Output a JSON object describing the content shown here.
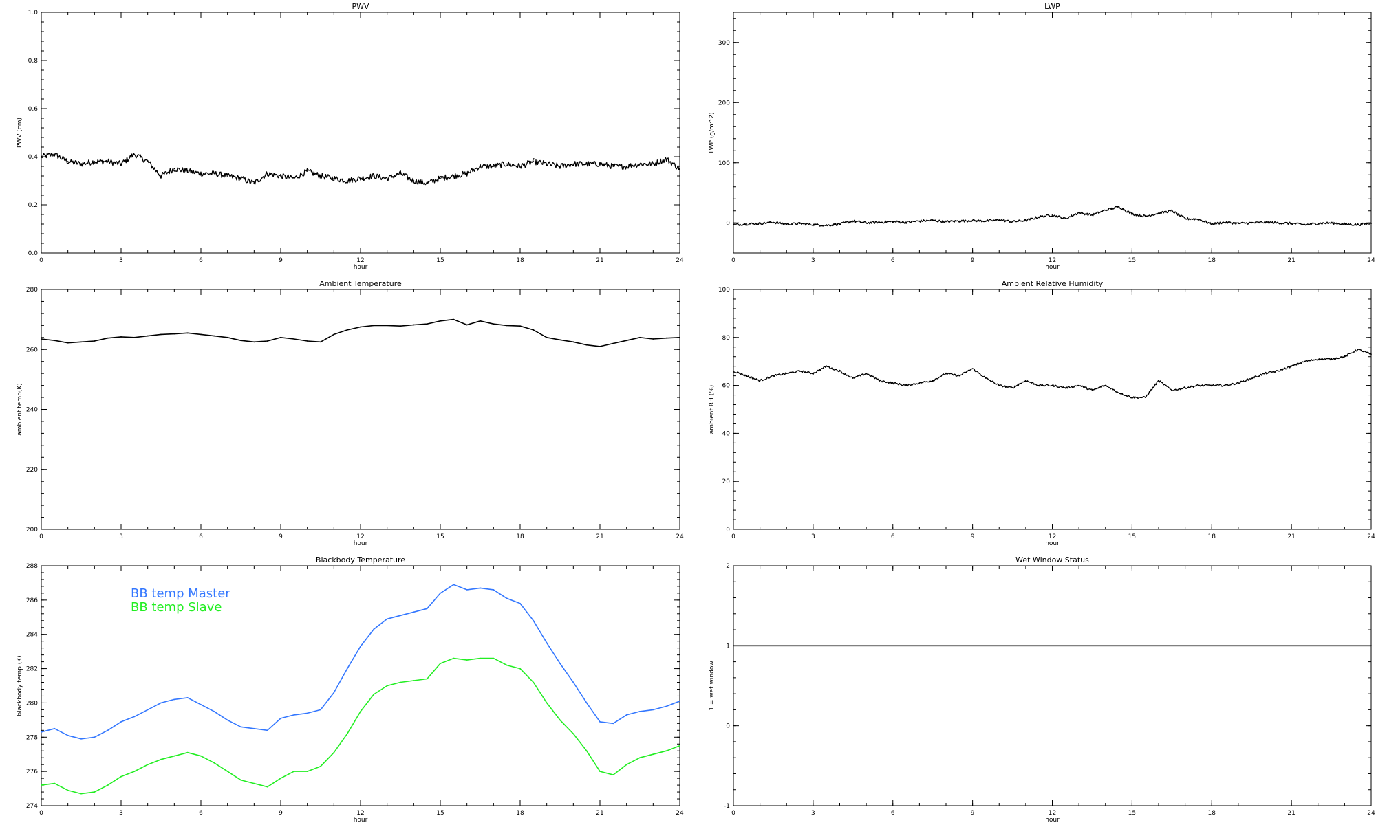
{
  "chart_data": [
    {
      "id": "pwv",
      "type": "line",
      "title": "PWV",
      "xlabel": "hour",
      "ylabel": "PWV (cm)",
      "xlim": [
        0,
        24
      ],
      "ylim": [
        0,
        1
      ],
      "xticks": [
        "0",
        "3",
        "6",
        "9",
        "12",
        "15",
        "18",
        "21",
        "24"
      ],
      "yticks": [
        "0.0",
        "0.2",
        "0.4",
        "0.6",
        "0.8",
        "1.0"
      ],
      "series": [
        {
          "color": "#000000",
          "noise": 0.012,
          "x": [
            0,
            0.5,
            1,
            1.5,
            2,
            2.5,
            3,
            3.5,
            4,
            4.5,
            5,
            5.5,
            6,
            6.5,
            7,
            7.5,
            8,
            8.5,
            9,
            9.5,
            10,
            10.5,
            11,
            11.5,
            12,
            12.5,
            13,
            13.5,
            14,
            14.5,
            15,
            15.5,
            16,
            16.5,
            17,
            17.5,
            18,
            18.5,
            19,
            19.5,
            20,
            20.5,
            21,
            21.5,
            22,
            22.5,
            23,
            23.5,
            24
          ],
          "y": [
            0.4,
            0.41,
            0.38,
            0.37,
            0.38,
            0.38,
            0.37,
            0.41,
            0.38,
            0.32,
            0.35,
            0.34,
            0.33,
            0.33,
            0.32,
            0.31,
            0.29,
            0.33,
            0.32,
            0.31,
            0.34,
            0.32,
            0.31,
            0.3,
            0.31,
            0.32,
            0.31,
            0.33,
            0.3,
            0.29,
            0.31,
            0.32,
            0.33,
            0.36,
            0.36,
            0.37,
            0.36,
            0.38,
            0.37,
            0.36,
            0.37,
            0.37,
            0.37,
            0.36,
            0.36,
            0.37,
            0.37,
            0.39,
            0.35
          ]
        }
      ]
    },
    {
      "id": "lwp",
      "type": "line",
      "title": "LWP",
      "xlabel": "hour",
      "ylabel": "LWP (g/m^2)",
      "xlim": [
        0,
        24
      ],
      "ylim": [
        -50,
        350
      ],
      "xticks": [
        "0",
        "3",
        "6",
        "9",
        "12",
        "15",
        "18",
        "21",
        "24"
      ],
      "yticks": [
        "0",
        "100",
        "200",
        "300"
      ],
      "series": [
        {
          "color": "#000000",
          "noise": 2,
          "x": [
            0,
            0.5,
            1,
            1.5,
            2,
            2.5,
            3,
            3.5,
            4,
            4.5,
            5,
            5.5,
            6,
            6.5,
            7,
            7.5,
            8,
            8.5,
            9,
            9.5,
            10,
            10.5,
            11,
            11.5,
            12,
            12.5,
            13,
            13.5,
            14,
            14.5,
            15,
            15.5,
            16,
            16.5,
            17,
            17.5,
            18,
            18.5,
            19,
            19.5,
            20,
            20.5,
            21,
            21.5,
            22,
            22.5,
            23,
            23.5,
            24
          ],
          "y": [
            -3,
            -2,
            -1,
            1,
            -2,
            -1,
            -3,
            -4,
            -2,
            3,
            0,
            1,
            2,
            1,
            3,
            4,
            2,
            3,
            4,
            3,
            5,
            2,
            4,
            10,
            13,
            7,
            17,
            13,
            21,
            27,
            15,
            11,
            16,
            20,
            7,
            6,
            -2,
            1,
            -1,
            0,
            1,
            0,
            -1,
            -3,
            -1,
            0,
            -2,
            -3,
            -1
          ]
        }
      ]
    },
    {
      "id": "ambient_temp",
      "type": "line",
      "title": "Ambient Temperature",
      "xlabel": "hour",
      "ylabel": "ambient temp(K)",
      "xlim": [
        0,
        24
      ],
      "ylim": [
        200,
        280
      ],
      "xticks": [
        "0",
        "3",
        "6",
        "9",
        "12",
        "15",
        "18",
        "21",
        "24"
      ],
      "yticks": [
        "200",
        "220",
        "240",
        "260",
        "280"
      ],
      "series": [
        {
          "color": "#000000",
          "noise": 0,
          "x": [
            0,
            0.5,
            1,
            1.5,
            2,
            2.5,
            3,
            3.5,
            4,
            4.5,
            5,
            5.5,
            6,
            6.5,
            7,
            7.5,
            8,
            8.5,
            9,
            9.5,
            10,
            10.5,
            11,
            11.5,
            12,
            12.5,
            13,
            13.5,
            14,
            14.5,
            15,
            15.5,
            16,
            16.5,
            17,
            17.5,
            18,
            18.5,
            19,
            19.5,
            20,
            20.5,
            21,
            21.5,
            22,
            22.5,
            23,
            23.5,
            24
          ],
          "y": [
            263.5,
            263,
            262.2,
            262.5,
            262.8,
            263.8,
            264.2,
            264,
            264.5,
            265,
            265.2,
            265.5,
            265,
            264.5,
            264,
            263,
            262.5,
            262.8,
            264,
            263.5,
            262.8,
            262.5,
            265,
            266.5,
            267.5,
            268,
            268,
            267.8,
            268.2,
            268.5,
            269.5,
            270,
            268.2,
            269.5,
            268.5,
            268,
            267.8,
            266.5,
            264,
            263.2,
            262.5,
            261.5,
            261,
            262,
            263,
            264,
            263.5,
            263.8,
            264
          ]
        }
      ]
    },
    {
      "id": "ambient_rh",
      "type": "line",
      "title": "Ambient Relative Humidity",
      "xlabel": "hour",
      "ylabel": "ambient RH (%)",
      "xlim": [
        0,
        24
      ],
      "ylim": [
        0,
        100
      ],
      "xticks": [
        "0",
        "3",
        "6",
        "9",
        "12",
        "15",
        "18",
        "21",
        "24"
      ],
      "yticks": [
        "0",
        "20",
        "40",
        "60",
        "80",
        "100"
      ],
      "series": [
        {
          "color": "#000000",
          "noise": 0.4,
          "x": [
            0,
            0.5,
            1,
            1.5,
            2,
            2.5,
            3,
            3.5,
            4,
            4.5,
            5,
            5.5,
            6,
            6.5,
            7,
            7.5,
            8,
            8.5,
            9,
            9.5,
            10,
            10.5,
            11,
            11.5,
            12,
            12.5,
            13,
            13.5,
            14,
            14.5,
            15,
            15.5,
            16,
            16.5,
            17,
            17.5,
            18,
            18.5,
            19,
            19.5,
            20,
            20.5,
            21,
            21.5,
            22,
            22.5,
            23,
            23.5,
            24
          ],
          "y": [
            66,
            64,
            62,
            64,
            65,
            66,
            65,
            68,
            66,
            63,
            65,
            62,
            61,
            60,
            61,
            62,
            65,
            64,
            67,
            63,
            60,
            59,
            62,
            60,
            60,
            59,
            60,
            58,
            60,
            57,
            55,
            55,
            62,
            58,
            59,
            60,
            60,
            60,
            61,
            63,
            65,
            66,
            68,
            70,
            71,
            71,
            72,
            75,
            73
          ]
        }
      ]
    },
    {
      "id": "bb_temp",
      "type": "line",
      "title": "Blackbody Temperature",
      "xlabel": "hour",
      "ylabel": "blackbody temp (K)",
      "xlim": [
        0,
        24
      ],
      "ylim": [
        274,
        288
      ],
      "xticks": [
        "0",
        "3",
        "6",
        "9",
        "12",
        "15",
        "18",
        "21",
        "24"
      ],
      "yticks": [
        "274",
        "276",
        "278",
        "280",
        "282",
        "284",
        "286",
        "288"
      ],
      "series": [
        {
          "name": "BB temp Master",
          "color": "#3377ff",
          "noise": 0,
          "x": [
            0,
            0.5,
            1,
            1.5,
            2,
            2.5,
            3,
            3.5,
            4,
            4.5,
            5,
            5.5,
            6,
            6.5,
            7,
            7.5,
            8,
            8.5,
            9,
            9.5,
            10,
            10.5,
            11,
            11.5,
            12,
            12.5,
            13,
            13.5,
            14,
            14.5,
            15,
            15.5,
            16,
            16.5,
            17,
            17.5,
            18,
            18.5,
            19,
            19.5,
            20,
            20.5,
            21,
            21.5,
            22,
            22.5,
            23,
            23.5,
            24
          ],
          "y": [
            278.3,
            278.5,
            278.1,
            277.9,
            278,
            278.4,
            278.9,
            279.2,
            279.6,
            280,
            280.2,
            280.3,
            279.9,
            279.5,
            279,
            278.6,
            278.5,
            278.4,
            279.1,
            279.3,
            279.4,
            279.6,
            280.6,
            282,
            283.3,
            284.3,
            284.9,
            285.1,
            285.3,
            285.5,
            286.4,
            286.9,
            286.6,
            286.7,
            286.6,
            286.1,
            285.8,
            284.8,
            283.5,
            282.3,
            281.2,
            280,
            278.9,
            278.8,
            279.3,
            279.5,
            279.6,
            279.8,
            280.1
          ]
        },
        {
          "name": "BB temp Slave",
          "color": "#22ee22",
          "noise": 0,
          "x": [
            0,
            0.5,
            1,
            1.5,
            2,
            2.5,
            3,
            3.5,
            4,
            4.5,
            5,
            5.5,
            6,
            6.5,
            7,
            7.5,
            8,
            8.5,
            9,
            9.5,
            10,
            10.5,
            11,
            11.5,
            12,
            12.5,
            13,
            13.5,
            14,
            14.5,
            15,
            15.5,
            16,
            16.5,
            17,
            17.5,
            18,
            18.5,
            19,
            19.5,
            20,
            20.5,
            21,
            21.5,
            22,
            22.5,
            23,
            23.5,
            24
          ],
          "y": [
            275.2,
            275.3,
            274.9,
            274.7,
            274.8,
            275.2,
            275.7,
            276,
            276.4,
            276.7,
            276.9,
            277.1,
            276.9,
            276.5,
            276,
            275.5,
            275.3,
            275.1,
            275.6,
            276,
            276,
            276.3,
            277.1,
            278.2,
            279.5,
            280.5,
            281,
            281.2,
            281.3,
            281.4,
            282.3,
            282.6,
            282.5,
            282.6,
            282.6,
            282.2,
            282,
            281.2,
            280,
            279,
            278.2,
            277.2,
            276,
            275.8,
            276.4,
            276.8,
            277,
            277.2,
            277.5
          ]
        }
      ]
    },
    {
      "id": "wet_window",
      "type": "line",
      "title": "Wet Window Status",
      "xlabel": "hour",
      "ylabel": "1 = wet window",
      "xlim": [
        0,
        24
      ],
      "ylim": [
        -1,
        2
      ],
      "xticks": [
        "0",
        "3",
        "6",
        "9",
        "12",
        "15",
        "18",
        "21",
        "24"
      ],
      "yticks": [
        "-1",
        "0",
        "1",
        "2"
      ],
      "series": [
        {
          "color": "#000000",
          "noise": 0,
          "x": [
            0,
            24
          ],
          "y": [
            1,
            1
          ]
        }
      ]
    }
  ]
}
